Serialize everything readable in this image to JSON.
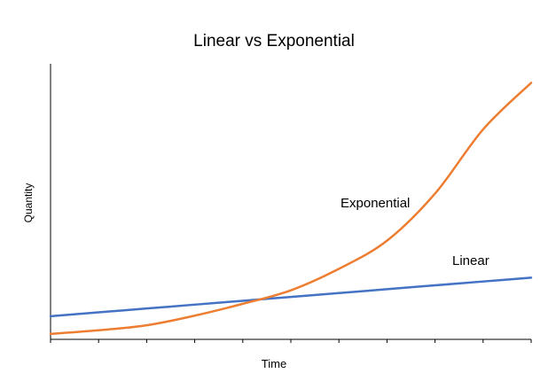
{
  "chart_data": {
    "type": "line",
    "title": "Linear vs Exponential",
    "xlabel": "Time",
    "ylabel": "Quantity",
    "xlim": [
      0,
      10
    ],
    "ylim": [
      0,
      100
    ],
    "grid": false,
    "legend": "none",
    "x": [
      0,
      1,
      2,
      3,
      4,
      5,
      6,
      7,
      8,
      9,
      10
    ],
    "series": [
      {
        "name": "Linear",
        "color": "#4472C4",
        "values": [
          8.4,
          9.8,
          11.2,
          12.6,
          14.0,
          15.4,
          16.8,
          18.2,
          19.6,
          21.0,
          22.4
        ]
      },
      {
        "name": "Exponential",
        "color": "#ED7D31",
        "values": [
          2.0,
          3.3,
          5.1,
          8.6,
          12.9,
          17.8,
          25.6,
          35.8,
          52.9,
          76.2,
          93.1
        ]
      }
    ]
  }
}
